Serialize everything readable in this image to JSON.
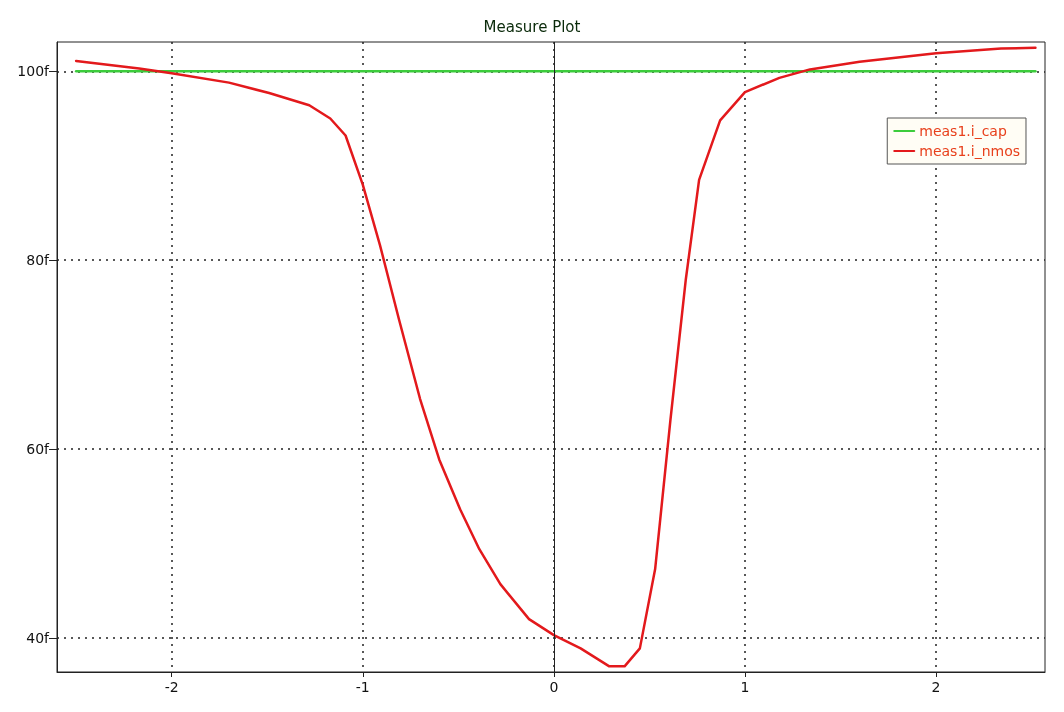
{
  "chart_data": {
    "type": "line",
    "title": "Measure Plot",
    "xlim": [
      -2.6,
      2.57
    ],
    "xticks": [
      -2,
      -1,
      0,
      1,
      2
    ],
    "ylim": [
      36.4,
      103.1
    ],
    "yticks": [
      {
        "value": 40,
        "label": "40f"
      },
      {
        "value": 60,
        "label": "60f"
      },
      {
        "value": 80,
        "label": "80f"
      },
      {
        "value": 100,
        "label": "100f"
      }
    ],
    "ref_lines": [
      {
        "axis": "x",
        "value": 0,
        "color": "#222222",
        "line_style": "solid"
      }
    ],
    "grid": true,
    "legend": "top right",
    "line_style": "solid",
    "marker": "none",
    "series": [
      {
        "name": "meas1.i_cap",
        "color": "#3ccc3c",
        "x": [
          -2.5,
          2.52
        ],
        "values": [
          100,
          100
        ]
      },
      {
        "name": "meas1.i_nmos",
        "color": "#e3191c",
        "x": [
          -2.5,
          -2.17,
          -2.0,
          -1.7,
          -1.49,
          -1.28,
          -1.17,
          -1.09,
          -1.0,
          -0.91,
          -0.81,
          -0.7,
          -0.6,
          -0.49,
          -0.39,
          -0.28,
          -0.13,
          0,
          0.14,
          0.29,
          0.37,
          0.45,
          0.53,
          0.61,
          0.69,
          0.76,
          0.87,
          1.0,
          1.18,
          1.34,
          1.6,
          2.0,
          2.34,
          2.52
        ],
        "values": [
          101.1,
          100.3,
          99.8,
          98.8,
          97.7,
          96.4,
          95.0,
          93.2,
          88.0,
          81.6,
          73.7,
          65.3,
          58.9,
          53.6,
          49.4,
          45.7,
          42.0,
          40.3,
          38.9,
          37.0,
          37.0,
          38.9,
          47.3,
          63.1,
          77.9,
          88.5,
          94.8,
          97.8,
          99.3,
          100.2,
          101.0,
          101.9,
          102.4,
          102.5
        ]
      }
    ]
  }
}
